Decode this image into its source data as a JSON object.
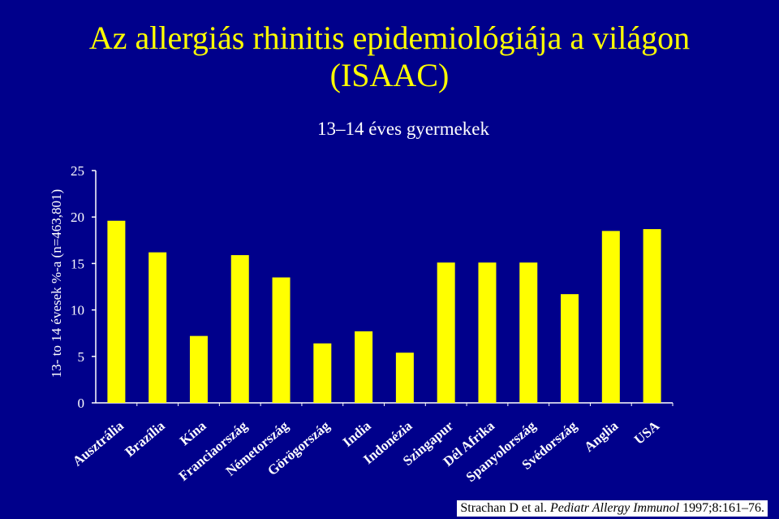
{
  "slide": {
    "title_line1": "Az allergiás rhinitis epidemiológiája a világon",
    "title_line2": "(ISAAC)",
    "citation_prefix": "Strachan D et al. ",
    "citation_journal": "Pediatr Allergy Immunol",
    "citation_suffix": " 1997;8:161–76."
  },
  "chart_data": {
    "type": "bar",
    "title": "13–14 éves gyermekek",
    "xlabel": "",
    "ylabel": "13- to 14 évesek %-a (n=463,801)",
    "ylim": [
      0,
      25
    ],
    "yticks": [
      0,
      5,
      10,
      15,
      20,
      25
    ],
    "grid": false,
    "legend": "none",
    "bar_color": "#ffff00",
    "categories": [
      "Ausztrália",
      "Brazília",
      "Kína",
      "Franciaország",
      "Németország",
      "Görögország",
      "India",
      "Indonézia",
      "Szingapur",
      "Dél Afrika",
      "Spanyolország",
      "Svédország",
      "Anglia",
      "USA"
    ],
    "values": [
      19.6,
      16.2,
      7.2,
      15.9,
      13.5,
      6.4,
      7.7,
      5.4,
      15.1,
      15.1,
      15.1,
      11.7,
      18.5,
      18.7
    ]
  }
}
